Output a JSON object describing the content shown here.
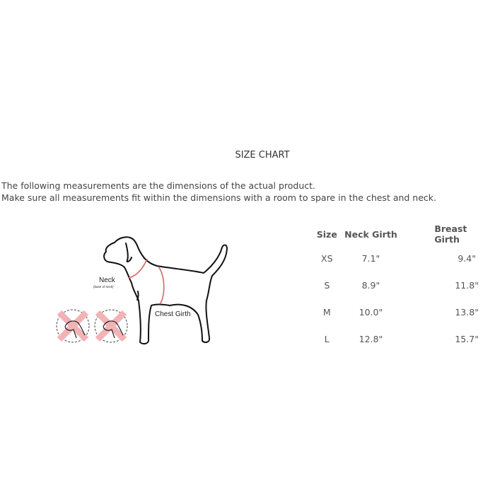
{
  "title": "SIZE CHART",
  "description": [
    "The following measurements are the dimensions of the actual product.",
    "Make sure all measurements fit within the dimensions with a room to spare in the chest and neck."
  ],
  "illustration": {
    "neck_label": "Neck",
    "neck_sublabel": "(base of neck)",
    "chest_label": "Chest Girth",
    "accent_color": "#d9656b",
    "wrong_mark_color": "#f2b3b6"
  },
  "table": {
    "headers": [
      "Size",
      "Neck Girth",
      "Breast Girth"
    ],
    "rows": [
      [
        "XS",
        "7.1\"",
        "9.4\""
      ],
      [
        "S",
        "8.9\"",
        "11.8\""
      ],
      [
        "M",
        "10.0\"",
        "13.8\""
      ],
      [
        "L",
        "12.8\"",
        "15.7\""
      ]
    ]
  }
}
